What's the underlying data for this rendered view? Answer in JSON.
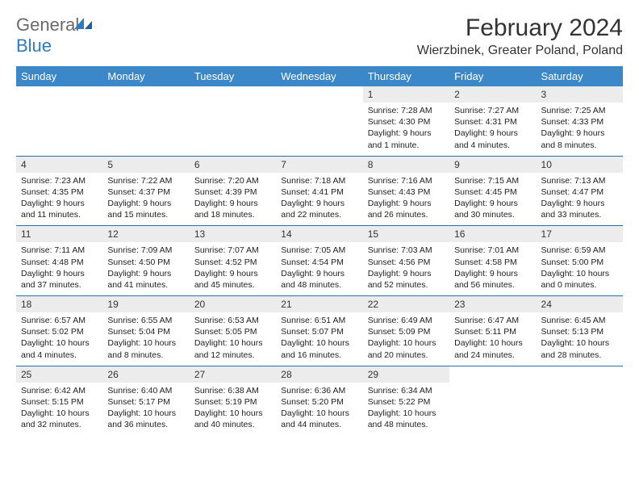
{
  "logo": {
    "general": "General",
    "blue": "Blue"
  },
  "title": "February 2024",
  "location": "Wierzbinek, Greater Poland, Poland",
  "colors": {
    "header_bg": "#3b87c8",
    "header_text": "#ffffff",
    "day_num_bg": "#ececec",
    "border": "#2b6fa8",
    "logo_gray": "#6a6a6a",
    "logo_blue": "#2c7bbf"
  },
  "weekdays": [
    "Sunday",
    "Monday",
    "Tuesday",
    "Wednesday",
    "Thursday",
    "Friday",
    "Saturday"
  ],
  "weeks": [
    [
      null,
      null,
      null,
      null,
      {
        "n": "1",
        "sr": "Sunrise: 7:28 AM",
        "ss": "Sunset: 4:30 PM",
        "dl": "Daylight: 9 hours and 1 minute."
      },
      {
        "n": "2",
        "sr": "Sunrise: 7:27 AM",
        "ss": "Sunset: 4:31 PM",
        "dl": "Daylight: 9 hours and 4 minutes."
      },
      {
        "n": "3",
        "sr": "Sunrise: 7:25 AM",
        "ss": "Sunset: 4:33 PM",
        "dl": "Daylight: 9 hours and 8 minutes."
      }
    ],
    [
      {
        "n": "4",
        "sr": "Sunrise: 7:23 AM",
        "ss": "Sunset: 4:35 PM",
        "dl": "Daylight: 9 hours and 11 minutes."
      },
      {
        "n": "5",
        "sr": "Sunrise: 7:22 AM",
        "ss": "Sunset: 4:37 PM",
        "dl": "Daylight: 9 hours and 15 minutes."
      },
      {
        "n": "6",
        "sr": "Sunrise: 7:20 AM",
        "ss": "Sunset: 4:39 PM",
        "dl": "Daylight: 9 hours and 18 minutes."
      },
      {
        "n": "7",
        "sr": "Sunrise: 7:18 AM",
        "ss": "Sunset: 4:41 PM",
        "dl": "Daylight: 9 hours and 22 minutes."
      },
      {
        "n": "8",
        "sr": "Sunrise: 7:16 AM",
        "ss": "Sunset: 4:43 PM",
        "dl": "Daylight: 9 hours and 26 minutes."
      },
      {
        "n": "9",
        "sr": "Sunrise: 7:15 AM",
        "ss": "Sunset: 4:45 PM",
        "dl": "Daylight: 9 hours and 30 minutes."
      },
      {
        "n": "10",
        "sr": "Sunrise: 7:13 AM",
        "ss": "Sunset: 4:47 PM",
        "dl": "Daylight: 9 hours and 33 minutes."
      }
    ],
    [
      {
        "n": "11",
        "sr": "Sunrise: 7:11 AM",
        "ss": "Sunset: 4:48 PM",
        "dl": "Daylight: 9 hours and 37 minutes."
      },
      {
        "n": "12",
        "sr": "Sunrise: 7:09 AM",
        "ss": "Sunset: 4:50 PM",
        "dl": "Daylight: 9 hours and 41 minutes."
      },
      {
        "n": "13",
        "sr": "Sunrise: 7:07 AM",
        "ss": "Sunset: 4:52 PM",
        "dl": "Daylight: 9 hours and 45 minutes."
      },
      {
        "n": "14",
        "sr": "Sunrise: 7:05 AM",
        "ss": "Sunset: 4:54 PM",
        "dl": "Daylight: 9 hours and 48 minutes."
      },
      {
        "n": "15",
        "sr": "Sunrise: 7:03 AM",
        "ss": "Sunset: 4:56 PM",
        "dl": "Daylight: 9 hours and 52 minutes."
      },
      {
        "n": "16",
        "sr": "Sunrise: 7:01 AM",
        "ss": "Sunset: 4:58 PM",
        "dl": "Daylight: 9 hours and 56 minutes."
      },
      {
        "n": "17",
        "sr": "Sunrise: 6:59 AM",
        "ss": "Sunset: 5:00 PM",
        "dl": "Daylight: 10 hours and 0 minutes."
      }
    ],
    [
      {
        "n": "18",
        "sr": "Sunrise: 6:57 AM",
        "ss": "Sunset: 5:02 PM",
        "dl": "Daylight: 10 hours and 4 minutes."
      },
      {
        "n": "19",
        "sr": "Sunrise: 6:55 AM",
        "ss": "Sunset: 5:04 PM",
        "dl": "Daylight: 10 hours and 8 minutes."
      },
      {
        "n": "20",
        "sr": "Sunrise: 6:53 AM",
        "ss": "Sunset: 5:05 PM",
        "dl": "Daylight: 10 hours and 12 minutes."
      },
      {
        "n": "21",
        "sr": "Sunrise: 6:51 AM",
        "ss": "Sunset: 5:07 PM",
        "dl": "Daylight: 10 hours and 16 minutes."
      },
      {
        "n": "22",
        "sr": "Sunrise: 6:49 AM",
        "ss": "Sunset: 5:09 PM",
        "dl": "Daylight: 10 hours and 20 minutes."
      },
      {
        "n": "23",
        "sr": "Sunrise: 6:47 AM",
        "ss": "Sunset: 5:11 PM",
        "dl": "Daylight: 10 hours and 24 minutes."
      },
      {
        "n": "24",
        "sr": "Sunrise: 6:45 AM",
        "ss": "Sunset: 5:13 PM",
        "dl": "Daylight: 10 hours and 28 minutes."
      }
    ],
    [
      {
        "n": "25",
        "sr": "Sunrise: 6:42 AM",
        "ss": "Sunset: 5:15 PM",
        "dl": "Daylight: 10 hours and 32 minutes."
      },
      {
        "n": "26",
        "sr": "Sunrise: 6:40 AM",
        "ss": "Sunset: 5:17 PM",
        "dl": "Daylight: 10 hours and 36 minutes."
      },
      {
        "n": "27",
        "sr": "Sunrise: 6:38 AM",
        "ss": "Sunset: 5:19 PM",
        "dl": "Daylight: 10 hours and 40 minutes."
      },
      {
        "n": "28",
        "sr": "Sunrise: 6:36 AM",
        "ss": "Sunset: 5:20 PM",
        "dl": "Daylight: 10 hours and 44 minutes."
      },
      {
        "n": "29",
        "sr": "Sunrise: 6:34 AM",
        "ss": "Sunset: 5:22 PM",
        "dl": "Daylight: 10 hours and 48 minutes."
      },
      null,
      null
    ]
  ]
}
